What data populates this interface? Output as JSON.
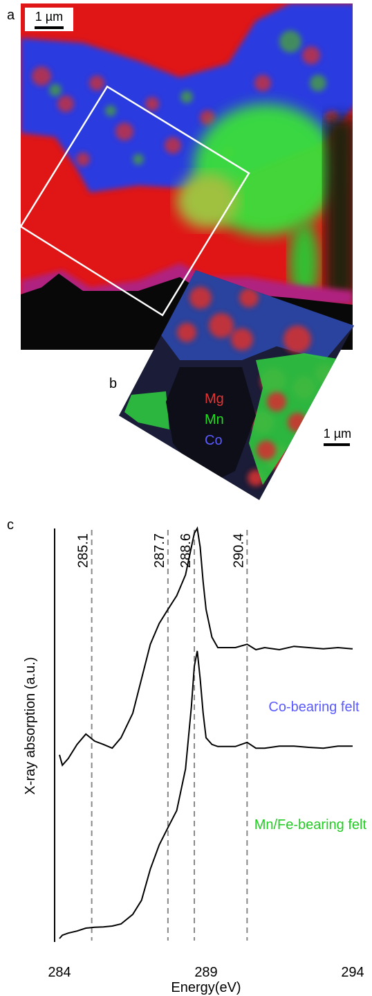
{
  "panels": {
    "a": {
      "label": "a",
      "scale_bar": "1 µm"
    },
    "b": {
      "label": "b",
      "scale_bar": "1 µm",
      "legend": [
        {
          "name": "Mg",
          "color": "#e03535"
        },
        {
          "name": "Mn",
          "color": "#22dd22"
        },
        {
          "name": "Co",
          "color": "#5a5aff"
        }
      ]
    }
  },
  "chart_data": {
    "type": "line",
    "panel_label": "c",
    "x_label": "Energy(eV)",
    "y_label": "X-ray absorption (a.u.)",
    "xlim": [
      284,
      294
    ],
    "xticks": [
      284,
      289,
      294
    ],
    "ylim": [
      0,
      100
    ],
    "vlines": [
      285.1,
      287.7,
      288.6,
      290.4
    ],
    "x": [
      284,
      284.1,
      284.3,
      284.6,
      284.9,
      285.2,
      285.5,
      285.8,
      286.1,
      286.5,
      286.8,
      287.1,
      287.4,
      287.7,
      288,
      288.3,
      288.5,
      288.6,
      288.7,
      288.8,
      288.9,
      289,
      289.2,
      289.4,
      289.7,
      290,
      290.4,
      290.7,
      291,
      291.5,
      292,
      292.5,
      293,
      293.5,
      294
    ],
    "series": [
      {
        "name": "Co-bearing felt",
        "color": "#000000",
        "label_color": "#5a5aff",
        "values": [
          44.7,
          42.2,
          43.8,
          47.2,
          49.7,
          48,
          47.2,
          46.3,
          48.8,
          54.7,
          63,
          71.3,
          76.3,
          79.7,
          83,
          88,
          94.7,
          98,
          99.2,
          94.7,
          86.3,
          79.7,
          73,
          70.5,
          70.5,
          70.5,
          71.3,
          70,
          70.5,
          70,
          70.8,
          70.5,
          70.2,
          70.5,
          70.2
        ]
      },
      {
        "name": "Mn/Fe-bearing felt",
        "color": "#000000",
        "label_color": "#22cc22",
        "values": [
          0.5,
          1.3,
          1.8,
          2.3,
          3,
          3.2,
          3.3,
          3.5,
          4,
          6.3,
          9.7,
          17.2,
          23,
          27.2,
          31.3,
          41.3,
          56.3,
          66,
          69.7,
          63,
          54.7,
          48.8,
          47.2,
          46.7,
          46.7,
          46.7,
          47.7,
          46.3,
          46.3,
          46.8,
          46.8,
          46.5,
          46.3,
          46.8,
          46.8
        ]
      }
    ]
  }
}
